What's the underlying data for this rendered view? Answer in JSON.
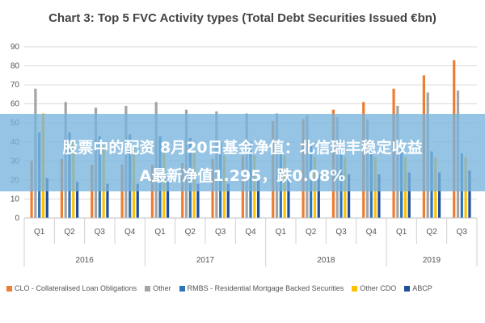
{
  "chart_data": {
    "type": "bar",
    "title": "Chart 3: Top 5 FVC Activity types (Total Debt Securities Issued €bn)",
    "ylim": [
      0,
      90
    ],
    "yticks": [
      0,
      10,
      20,
      30,
      40,
      50,
      60,
      70,
      80,
      90
    ],
    "grid": true,
    "legend_position": "bottom",
    "categories": [
      "Q1",
      "Q2",
      "Q3",
      "Q4",
      "Q1",
      "Q2",
      "Q3",
      "Q4",
      "Q1",
      "Q2",
      "Q3",
      "Q4",
      "Q1",
      "Q2",
      "Q3"
    ],
    "years": [
      {
        "label": "2016",
        "start": 0,
        "end": 3
      },
      {
        "label": "2017",
        "start": 4,
        "end": 7
      },
      {
        "label": "2018",
        "start": 8,
        "end": 11
      },
      {
        "label": "2019",
        "start": 12,
        "end": 14
      }
    ],
    "series": [
      {
        "name": "CLO - Collateralised Loan Obligations",
        "color": "#ED7D31",
        "values": [
          30,
          31,
          28,
          28,
          28,
          29,
          31,
          33,
          51,
          52,
          57,
          61,
          68,
          75,
          83
        ]
      },
      {
        "name": "Other",
        "color": "#A5A5A5",
        "values": [
          68,
          61,
          58,
          59,
          61,
          57,
          56,
          55,
          55,
          54,
          53,
          52,
          59,
          66,
          67
        ]
      },
      {
        "name": "RMBS - Residential Mortgage Backed Securities",
        "color": "#2E75B6",
        "values": [
          45,
          45,
          43,
          44,
          43,
          42,
          40,
          40,
          40,
          38,
          38,
          37,
          36,
          35,
          34
        ]
      },
      {
        "name": "Other CDO",
        "color": "#FFC000",
        "values": [
          55,
          40,
          38,
          37,
          36,
          35,
          33,
          33,
          33,
          32,
          32,
          32,
          32,
          32,
          32
        ]
      },
      {
        "name": "ABCP",
        "color": "#1F4E9A",
        "values": [
          21,
          19,
          18,
          18,
          19,
          18,
          18,
          21,
          22,
          23,
          23,
          23,
          24,
          24,
          25
        ]
      }
    ]
  },
  "overlay": {
    "line1": "股票中的配资 8月20日基金净值：北信瑞丰稳定收益",
    "line2": "A最新净值1.295，跌0.08%"
  }
}
